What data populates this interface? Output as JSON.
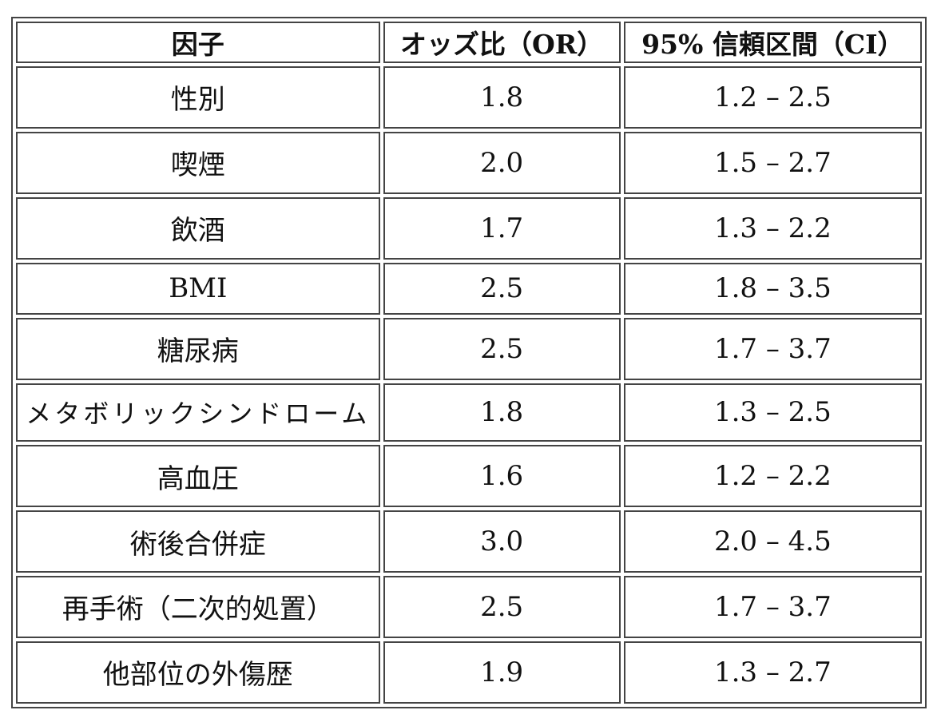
{
  "table": {
    "headers": [
      "因子",
      "オッズ比（OR）",
      "95% 信頼区間（CI）"
    ],
    "rows": [
      {
        "factor": "性別",
        "or": "1.8",
        "ci": "1.2 – 2.5"
      },
      {
        "factor": "喫煙",
        "or": "2.0",
        "ci": "1.5 – 2.7"
      },
      {
        "factor": "飲酒",
        "or": "1.7",
        "ci": "1.3 – 2.2"
      },
      {
        "factor": "BMI",
        "or": "2.5",
        "ci": "1.8 – 3.5"
      },
      {
        "factor": "糖尿病",
        "or": "2.5",
        "ci": "1.7 – 3.7"
      },
      {
        "factor": "メタボリックシンドローム",
        "or": "1.8",
        "ci": "1.3 – 2.5"
      },
      {
        "factor": "高血圧",
        "or": "1.6",
        "ci": "1.2 – 2.2"
      },
      {
        "factor": "術後合併症",
        "or": "3.0",
        "ci": "2.0 – 4.5"
      },
      {
        "factor": "再手術（二次的処置）",
        "or": "2.5",
        "ci": "1.7 – 3.7"
      },
      {
        "factor": "他部位の外傷歴",
        "or": "1.9",
        "ci": "1.3 – 2.7"
      }
    ]
  }
}
